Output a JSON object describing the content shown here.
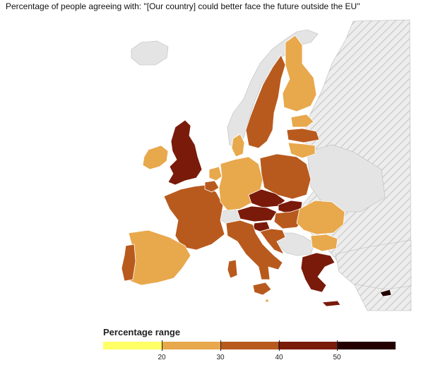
{
  "title": "Percentage of people agreeing with: \"[Our country] could better face the future outside the EU\"",
  "legend": {
    "title": "Percentage range",
    "tick_labels": [
      "20",
      "30",
      "40",
      "50"
    ],
    "colors": [
      "#ffff66",
      "#e8a84c",
      "#b85a1e",
      "#7a1a0a",
      "#240000"
    ]
  },
  "colors": {
    "non_eu_fill": "#e4e4e4",
    "hatch": "#cfcfcf",
    "border": "#ffffff",
    "sea": "#ffffff"
  },
  "countries": {
    "uk": "#7a1a0a",
    "ireland": "#e8a84c",
    "france": "#b85a1e",
    "spain": "#e8a84c",
    "portugal": "#b85a1e",
    "germany": "#e8a84c",
    "denmark": "#e8a84c",
    "netherlands": "#e8a84c",
    "belgium": "#b85a1e",
    "italy": "#b85a1e",
    "austria": "#7a1a0a",
    "czechia": "#7a1a0a",
    "slovakia": "#7a1a0a",
    "hungary": "#b85a1e",
    "slovenia": "#7a1a0a",
    "croatia": "#b85a1e",
    "poland": "#b85a1e",
    "sweden": "#b85a1e",
    "finland": "#e8a84c",
    "estonia": "#e8a84c",
    "latvia": "#b85a1e",
    "lithuania": "#e8a84c",
    "romania": "#e8a84c",
    "bulgaria": "#e8a84c",
    "greece": "#7a1a0a",
    "cyprus": "#240000",
    "malta": "#e8a84c"
  }
}
